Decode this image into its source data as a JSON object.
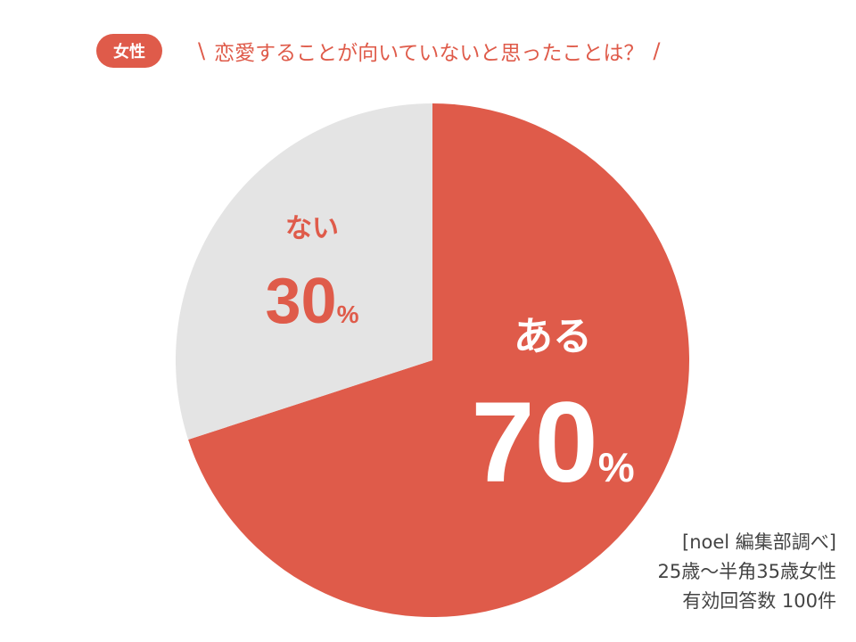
{
  "badge": "女性",
  "title": {
    "open_mark": "\\",
    "question": "恋愛することが向いていないと思ったことは？",
    "close_mark": "/"
  },
  "colors": {
    "accent": "#df5b4a",
    "gray": "#e4e4e4",
    "white": "#ffffff"
  },
  "chart_data": {
    "type": "pie",
    "categories": [
      "ある",
      "ない"
    ],
    "values": [
      70,
      30
    ],
    "unit": "%",
    "title": "恋愛することが向いていないと思ったことは？"
  },
  "source": {
    "line1": "[noel 編集部調べ]",
    "line2": "25歳～半角35歳女性",
    "line3": "有効回答数 100件"
  }
}
